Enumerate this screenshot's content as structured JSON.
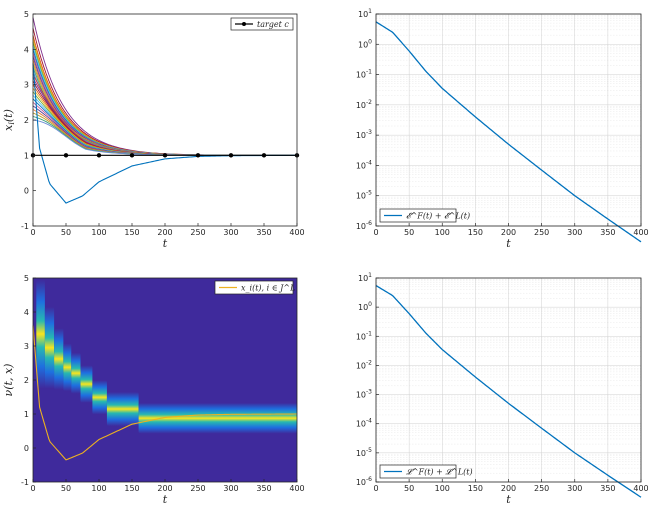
{
  "chart_data": [
    {
      "panel": "top-left",
      "type": "line",
      "xlabel": "t",
      "ylabel": "x_i(t)",
      "xlim": [
        0,
        400
      ],
      "ylim": [
        -1,
        5
      ],
      "xticks": [
        0,
        50,
        100,
        150,
        200,
        250,
        300,
        350,
        400
      ],
      "yticks": [
        -1,
        0,
        1,
        2,
        3,
        4,
        5
      ],
      "legend": {
        "placement": "top-right",
        "entries": [
          "target c"
        ]
      },
      "grid": false,
      "target": {
        "name": "target c",
        "value": 1,
        "marker_x": [
          0,
          50,
          100,
          150,
          200,
          250,
          300,
          350,
          400
        ]
      },
      "series_initial_values": [
        4.9,
        4.6,
        4.4,
        4.3,
        4.2,
        4.1,
        4.0,
        3.9,
        3.8,
        3.7,
        3.6,
        3.5,
        3.4,
        3.3,
        3.2,
        3.1,
        3.0,
        2.9,
        2.8,
        2.7,
        2.6,
        2.5,
        2.4,
        2.3,
        2.2,
        2.1,
        2.0
      ],
      "outlier_series": {
        "x": [
          0,
          10,
          25,
          50,
          75,
          100,
          150,
          200,
          250,
          300,
          400
        ],
        "y": [
          3.6,
          1.2,
          0.2,
          -0.35,
          -0.15,
          0.25,
          0.7,
          0.9,
          0.97,
          0.99,
          1.0
        ]
      }
    },
    {
      "panel": "top-right",
      "type": "line",
      "scale": "log",
      "xlabel": "t",
      "xlim": [
        0,
        400
      ],
      "ylim": [
        1e-06,
        10
      ],
      "xticks": [
        0,
        50,
        100,
        150,
        200,
        250,
        300,
        350,
        400
      ],
      "yticks": [
        "10^{-6}",
        "10^{-5}",
        "10^{-4}",
        "10^{-3}",
        "10^{-2}",
        "10^{-1}",
        "10^{0}",
        "10^{1}"
      ],
      "legend": {
        "placement": "bottom-left",
        "entries": [
          "𝓔^F(t) + 𝓔^L(t)"
        ]
      },
      "grid": true,
      "series": [
        {
          "x": [
            0,
            25,
            50,
            75,
            100,
            150,
            200,
            250,
            300,
            350,
            400
          ],
          "y": [
            5.5,
            2.5,
            0.6,
            0.13,
            0.035,
            0.004,
            0.0005,
            7e-05,
            1e-05,
            1.7e-06,
            3e-07
          ]
        }
      ]
    },
    {
      "panel": "bottom-left",
      "type": "heatmap",
      "xlabel": "t",
      "ylabel": "ν(t, x)",
      "xlim": [
        0,
        400
      ],
      "ylim": [
        -1,
        5
      ],
      "xticks": [
        0,
        50,
        100,
        150,
        200,
        250,
        300,
        350,
        400
      ],
      "yticks": [
        -1,
        0,
        1,
        2,
        3,
        4,
        5
      ],
      "legend": {
        "placement": "top-right",
        "entries": [
          "x_i(t),  i ∈ J^L"
        ]
      },
      "density_peaks": {
        "t": [
          10,
          30,
          50,
          65,
          80,
          100,
          135,
          200,
          300,
          400
        ],
        "x": [
          3.4,
          2.8,
          2.4,
          2.2,
          1.9,
          1.5,
          1.15,
          0.9,
          0.87,
          0.87
        ]
      },
      "leader_series": {
        "x": [
          0,
          10,
          25,
          50,
          75,
          100,
          150,
          200,
          250,
          300,
          400
        ],
        "y": [
          3.6,
          1.2,
          0.2,
          -0.35,
          -0.15,
          0.25,
          0.7,
          0.9,
          0.97,
          0.99,
          1.0
        ]
      }
    },
    {
      "panel": "bottom-right",
      "type": "line",
      "scale": "log",
      "xlabel": "t",
      "xlim": [
        0,
        400
      ],
      "ylim": [
        1e-06,
        10
      ],
      "xticks": [
        0,
        50,
        100,
        150,
        200,
        250,
        300,
        350,
        400
      ],
      "yticks": [
        "10^{-6}",
        "10^{-5}",
        "10^{-4}",
        "10^{-3}",
        "10^{-2}",
        "10^{-1}",
        "10^{0}",
        "10^{1}"
      ],
      "legend": {
        "placement": "bottom-left",
        "entries": [
          "𝓛^F(t) + 𝓛^L(t)"
        ]
      },
      "grid": true,
      "series": [
        {
          "x": [
            0,
            25,
            50,
            75,
            100,
            150,
            200,
            250,
            300,
            350,
            400
          ],
          "y": [
            5.5,
            2.5,
            0.6,
            0.13,
            0.035,
            0.004,
            0.0005,
            7e-05,
            1e-05,
            1.7e-06,
            3e-07
          ]
        }
      ]
    }
  ]
}
